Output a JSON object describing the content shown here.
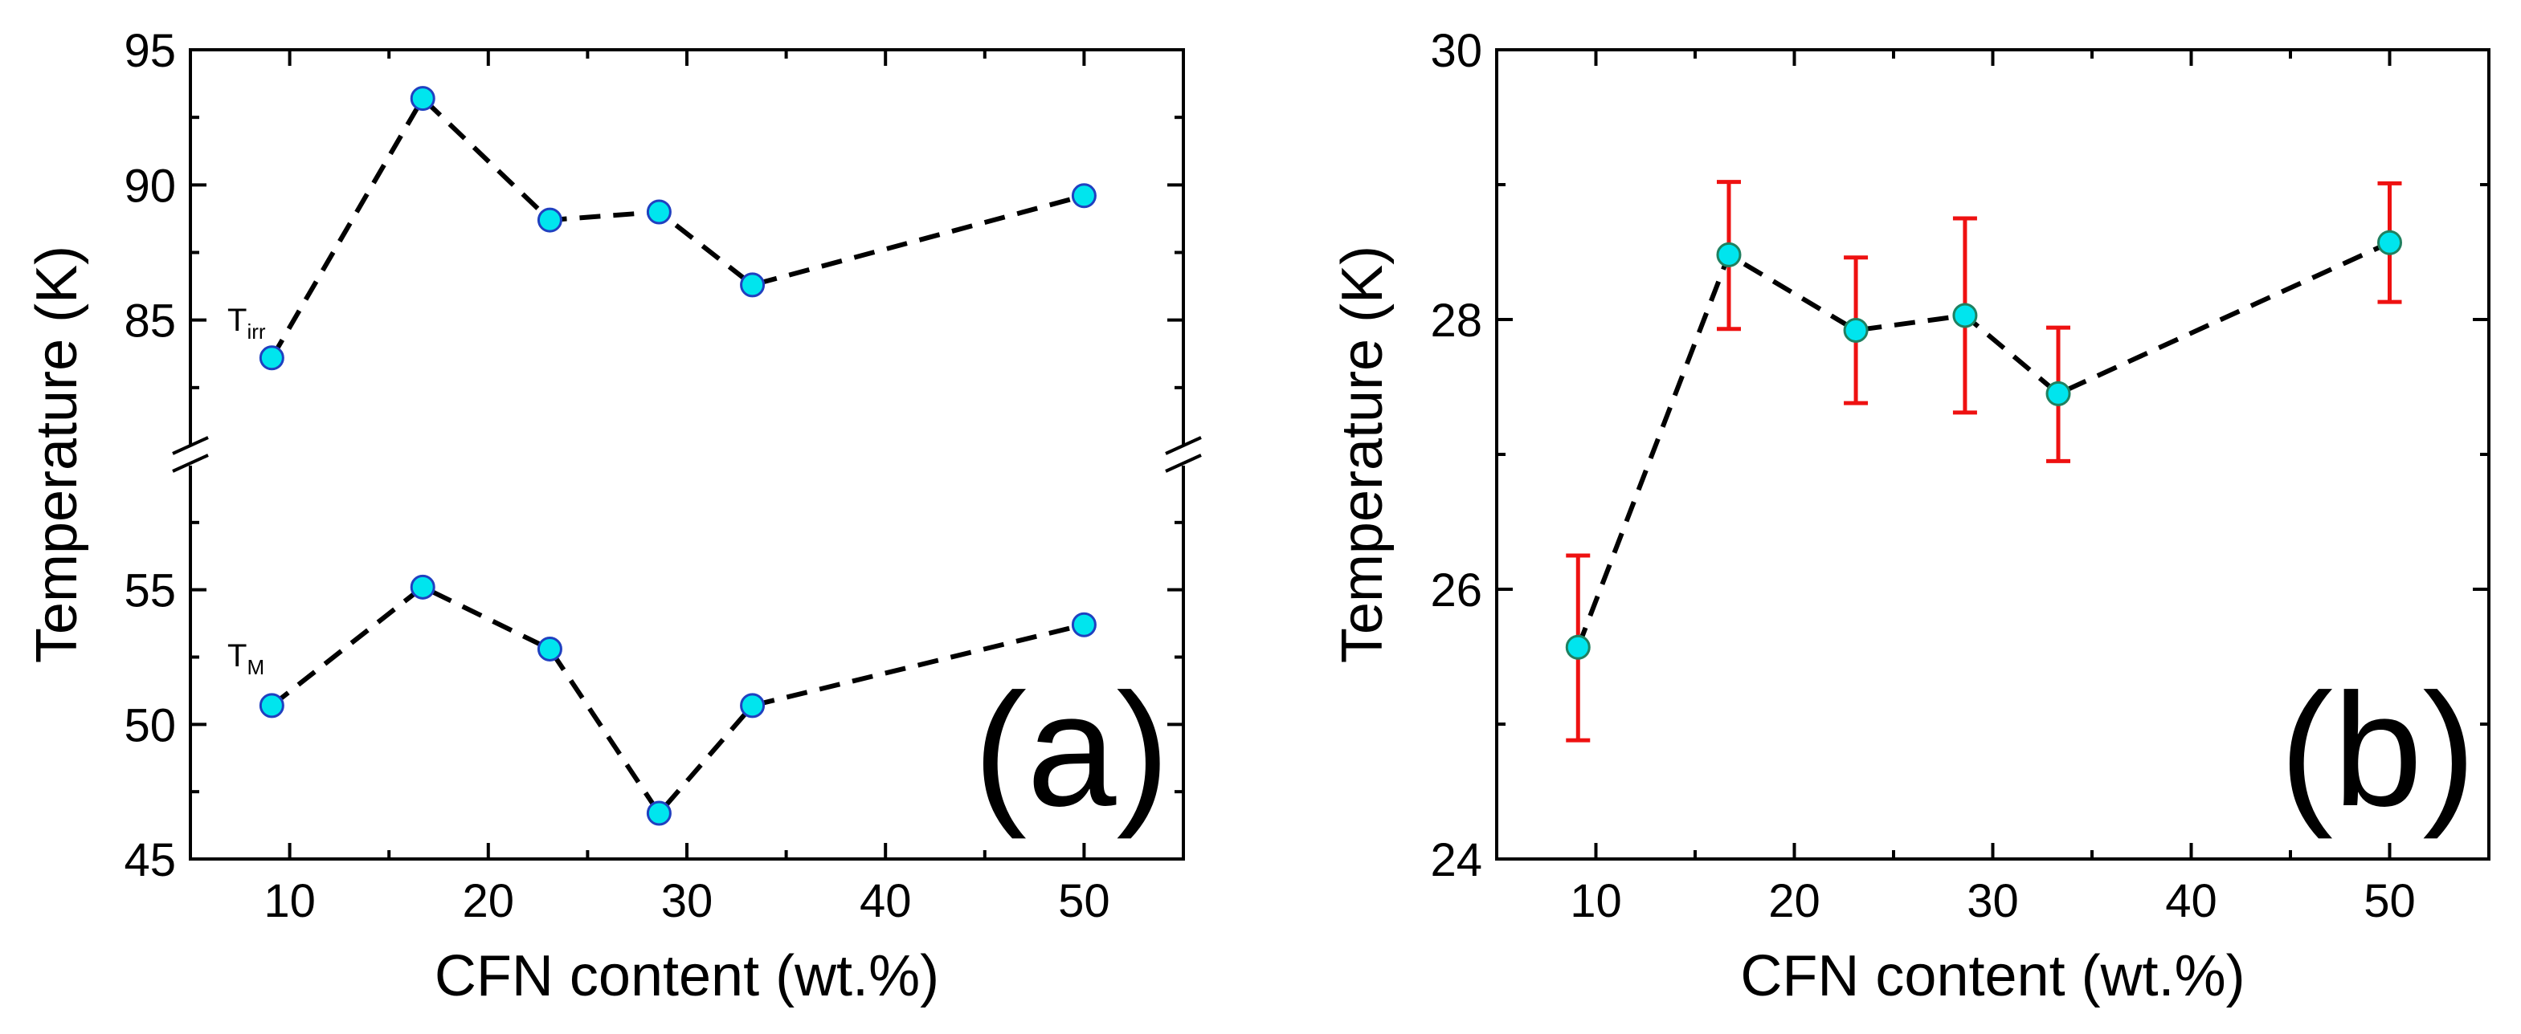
{
  "chart_data": [
    {
      "panel": "a",
      "type": "line",
      "panel_label": "(a)",
      "xlabel": "CFN content (wt.%)",
      "ylabel": "Temperature (K)",
      "xlim": [
        5,
        55
      ],
      "xticks": [
        10,
        20,
        30,
        40,
        50
      ],
      "y_axis_break": true,
      "upper_ylim": [
        80,
        95
      ],
      "upper_yticks": [
        85,
        90,
        95
      ],
      "lower_ylim": [
        45,
        60
      ],
      "lower_yticks": [
        45,
        50,
        55
      ],
      "line_style": "dashed",
      "marker_color": "#00e5ee",
      "series": [
        {
          "name": "T_irr",
          "label": "T",
          "label_sub": "irr",
          "x": [
            9.1,
            16.7,
            23.1,
            28.6,
            33.3,
            50
          ],
          "values": [
            83.6,
            93.2,
            88.7,
            89.0,
            86.3,
            89.6
          ]
        },
        {
          "name": "T_M",
          "label": "T",
          "label_sub": "M",
          "x": [
            9.1,
            16.7,
            23.1,
            28.6,
            33.3,
            50
          ],
          "values": [
            50.7,
            55.1,
            52.8,
            46.7,
            50.7,
            53.7
          ]
        }
      ]
    },
    {
      "panel": "b",
      "type": "scatter",
      "panel_label": "(b)",
      "xlabel": "CFN content (wt.%)",
      "ylabel": "Temperature (K)",
      "xlim": [
        5,
        55
      ],
      "xticks": [
        10,
        20,
        30,
        40,
        50
      ],
      "ylim": [
        24,
        30
      ],
      "yticks": [
        24,
        26,
        28,
        30
      ],
      "line_style": "dashed",
      "marker_color": "#00e5ee",
      "error_bar_color": "#ee1111",
      "series": [
        {
          "name": "Temperature",
          "x": [
            9.1,
            16.7,
            23.1,
            28.6,
            33.3,
            50
          ],
          "values": [
            25.57,
            28.48,
            27.92,
            28.03,
            27.45,
            28.57
          ],
          "error_lower": [
            24.88,
            27.93,
            27.38,
            27.31,
            26.95,
            28.13
          ],
          "error_upper": [
            26.25,
            29.02,
            28.46,
            28.75,
            27.94,
            29.01
          ]
        }
      ]
    }
  ]
}
